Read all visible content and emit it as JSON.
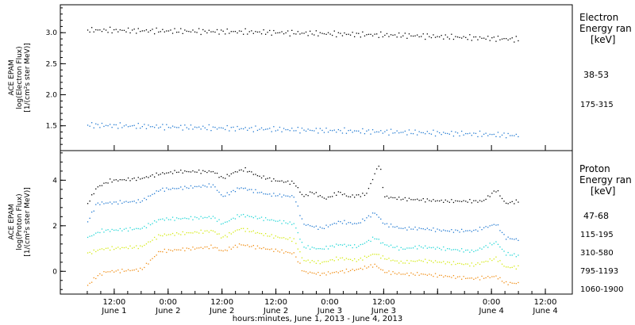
{
  "chart_data": [
    {
      "type": "scatter",
      "ylabel": [
        "ACE EPAM",
        "log(Electron Flux)",
        "[1/(cm²s ster MeV)]"
      ],
      "ylim": [
        1.1,
        3.45
      ],
      "y_ticks": [
        "3.0",
        "2.5",
        "2.0",
        "1.5"
      ],
      "legend_header": [
        "Electron",
        "Energy ran",
        "[keV]"
      ],
      "legend_placement": "right",
      "series": [
        {
          "name": "38-53",
          "color": "#000000",
          "points": [
            [
              0,
              3.05
            ],
            [
              12,
              3.04
            ],
            [
              24,
              3.03
            ],
            [
              36,
              3.02
            ],
            [
              48,
              3.0
            ],
            [
              60,
              2.98
            ],
            [
              72,
              2.96
            ],
            [
              84,
              2.93
            ],
            [
              96,
              2.9
            ]
          ]
        },
        {
          "name": "175-315",
          "color": "#1f78d1",
          "points": [
            [
              0,
              1.52
            ],
            [
              12,
              1.5
            ],
            [
              24,
              1.48
            ],
            [
              36,
              1.46
            ],
            [
              48,
              1.44
            ],
            [
              60,
              1.42
            ],
            [
              72,
              1.4
            ],
            [
              84,
              1.38
            ],
            [
              96,
              1.35
            ]
          ]
        }
      ]
    },
    {
      "type": "scatter",
      "ylabel": [
        "ACE EPAM",
        "log(Proton Flux)",
        "[1/(cm²s ster MeV)]"
      ],
      "ylim": [
        -1.0,
        5.3
      ],
      "y_ticks": [
        "4",
        "2",
        "0"
      ],
      "legend_header": [
        "Proton",
        "Energy ran",
        "[keV]"
      ],
      "legend_placement": "right",
      "series": [
        {
          "name": "47-68",
          "color": "#000000",
          "points": [
            [
              0,
              3.0
            ],
            [
              2,
              3.7
            ],
            [
              5,
              4.0
            ],
            [
              12,
              4.1
            ],
            [
              16,
              4.3
            ],
            [
              20,
              4.4
            ],
            [
              28,
              4.4
            ],
            [
              30,
              4.1
            ],
            [
              33,
              4.4
            ],
            [
              35,
              4.5
            ],
            [
              38,
              4.2
            ],
            [
              42,
              4.0
            ],
            [
              46,
              3.9
            ],
            [
              47,
              3.6
            ],
            [
              48,
              3.3
            ],
            [
              50,
              3.5
            ],
            [
              53,
              3.2
            ],
            [
              56,
              3.5
            ],
            [
              58,
              3.3
            ],
            [
              62,
              3.4
            ],
            [
              65,
              4.8
            ],
            [
              66,
              3.3
            ],
            [
              70,
              3.2
            ],
            [
              80,
              3.1
            ],
            [
              88,
              3.1
            ],
            [
              91,
              3.6
            ],
            [
              93,
              3.0
            ],
            [
              96,
              3.1
            ]
          ]
        },
        {
          "name": "115-195",
          "color": "#1f78d1",
          "points": [
            [
              0,
              2.2
            ],
            [
              2,
              3.0
            ],
            [
              12,
              3.1
            ],
            [
              16,
              3.6
            ],
            [
              28,
              3.8
            ],
            [
              30,
              3.3
            ],
            [
              34,
              3.7
            ],
            [
              40,
              3.4
            ],
            [
              46,
              3.3
            ],
            [
              48,
              2.1
            ],
            [
              52,
              1.9
            ],
            [
              56,
              2.2
            ],
            [
              60,
              2.1
            ],
            [
              64,
              2.6
            ],
            [
              66,
              2.1
            ],
            [
              70,
              1.9
            ],
            [
              74,
              1.9
            ],
            [
              80,
              1.8
            ],
            [
              86,
              1.8
            ],
            [
              91,
              2.1
            ],
            [
              93,
              1.5
            ],
            [
              96,
              1.4
            ]
          ]
        },
        {
          "name": "310-580",
          "color": "#1fd6d6",
          "points": [
            [
              0,
              1.5
            ],
            [
              3,
              1.8
            ],
            [
              12,
              1.9
            ],
            [
              16,
              2.3
            ],
            [
              28,
              2.4
            ],
            [
              30,
              2.1
            ],
            [
              34,
              2.5
            ],
            [
              40,
              2.3
            ],
            [
              46,
              2.1
            ],
            [
              48,
              1.1
            ],
            [
              52,
              1.0
            ],
            [
              56,
              1.2
            ],
            [
              60,
              1.1
            ],
            [
              64,
              1.5
            ],
            [
              66,
              1.2
            ],
            [
              70,
              1.0
            ],
            [
              74,
              1.1
            ],
            [
              80,
              1.0
            ],
            [
              86,
              0.9
            ],
            [
              91,
              1.3
            ],
            [
              93,
              0.8
            ],
            [
              96,
              0.7
            ]
          ]
        },
        {
          "name": "795-1193",
          "color": "#d4ea10",
          "points": [
            [
              0,
              0.8
            ],
            [
              3,
              1.0
            ],
            [
              12,
              1.1
            ],
            [
              16,
              1.6
            ],
            [
              28,
              1.8
            ],
            [
              30,
              1.5
            ],
            [
              34,
              1.9
            ],
            [
              40,
              1.6
            ],
            [
              46,
              1.4
            ],
            [
              48,
              0.5
            ],
            [
              52,
              0.4
            ],
            [
              56,
              0.6
            ],
            [
              60,
              0.5
            ],
            [
              64,
              0.8
            ],
            [
              66,
              0.6
            ],
            [
              70,
              0.4
            ],
            [
              74,
              0.5
            ],
            [
              80,
              0.4
            ],
            [
              86,
              0.3
            ],
            [
              91,
              0.6
            ],
            [
              93,
              0.2
            ],
            [
              96,
              0.2
            ]
          ]
        },
        {
          "name": "1060-1900",
          "color": "#f08c10",
          "points": [
            [
              0,
              -0.6
            ],
            [
              2,
              -0.2
            ],
            [
              4,
              0.0
            ],
            [
              12,
              0.1
            ],
            [
              16,
              0.9
            ],
            [
              28,
              1.1
            ],
            [
              30,
              0.9
            ],
            [
              34,
              1.2
            ],
            [
              40,
              1.0
            ],
            [
              46,
              0.8
            ],
            [
              48,
              0.0
            ],
            [
              52,
              -0.1
            ],
            [
              56,
              0.0
            ],
            [
              60,
              0.1
            ],
            [
              64,
              0.3
            ],
            [
              66,
              0.0
            ],
            [
              70,
              -0.1
            ],
            [
              74,
              -0.1
            ],
            [
              80,
              -0.2
            ],
            [
              86,
              -0.3
            ],
            [
              91,
              -0.2
            ],
            [
              93,
              -0.5
            ],
            [
              96,
              -0.5
            ]
          ]
        }
      ]
    }
  ],
  "x_axis": {
    "range_hours": [
      -6,
      108
    ],
    "tick_hours": [
      6,
      18,
      30,
      42,
      54,
      66,
      78,
      90,
      102
    ],
    "tick_times": [
      "12:00",
      "0:00",
      "12:00",
      "0:00",
      "12:00",
      "0:00",
      "12:00"
    ],
    "time_tick_hours": [
      6,
      18,
      42,
      54,
      66,
      90,
      102
    ],
    "time_tick_labels": [
      "12:00",
      "0:00",
      "12:00",
      "0:00",
      "12:00",
      "0:00",
      "12:00"
    ],
    "date_labels": [
      "June 1",
      "June 2",
      "June 2",
      "June 3",
      "June 3",
      "June 4",
      "June 4"
    ],
    "mid_time_hour": 30,
    "mid_time_label": "12:00",
    "mid_date_label": "June 2",
    "xlabel": "hours:minutes, June  1, 2013 - June  4, 2013"
  }
}
